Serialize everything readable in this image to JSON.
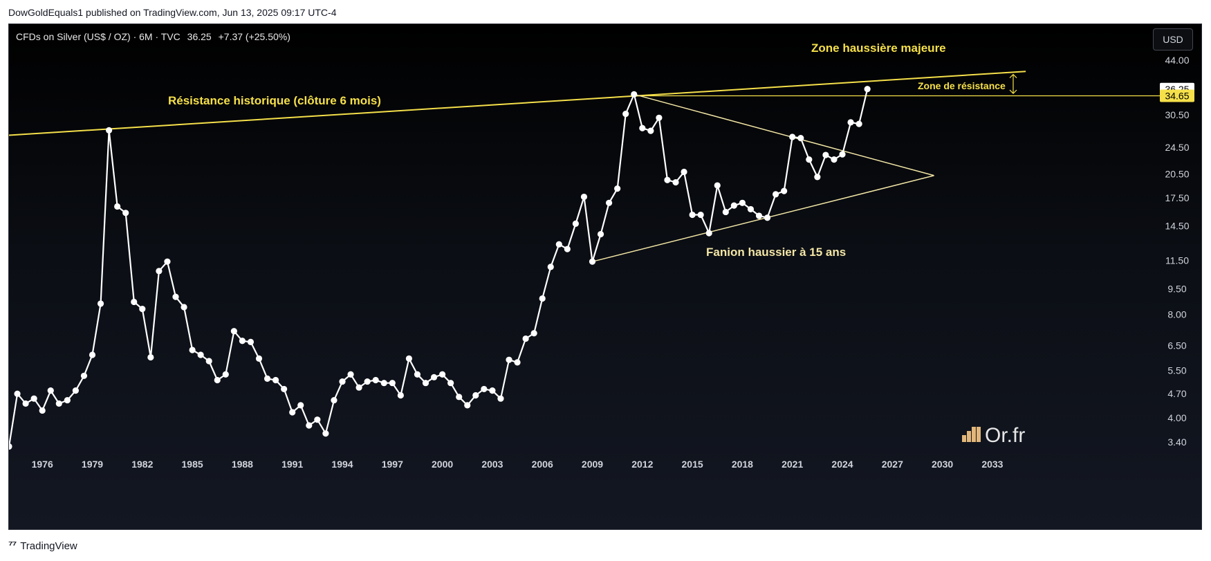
{
  "header": {
    "published": "DowGoldEquals1 published on TradingView.com, Jun 13, 2025 09:17 UTC-4"
  },
  "legend": {
    "symbol": "CFDs on Silver (US$ / OZ) · 6M · TVC",
    "price": "36.25",
    "change": "+7.37 (+25.50%)"
  },
  "currency_button": "USD",
  "footer": {
    "brand": "TradingView"
  },
  "watermark": {
    "text": "Or.fr"
  },
  "colors": {
    "series": "#ffffff",
    "resistance": "#f5e04a",
    "pennant": "#f3e6a6",
    "label_yellow": "#f5e04a",
    "price_badge_bg": "#f5e04a"
  },
  "chart_data": {
    "type": "line",
    "scale": "log",
    "grid": false,
    "x_ticks": [
      "1976",
      "1979",
      "1982",
      "1985",
      "1988",
      "1991",
      "1994",
      "1997",
      "2000",
      "2003",
      "2006",
      "2009",
      "2012",
      "2015",
      "2018",
      "2021",
      "2024",
      "2027",
      "2030",
      "2033"
    ],
    "y_ticks": [
      "44.00",
      "36.25",
      "34.65",
      "30.50",
      "24.50",
      "20.50",
      "17.50",
      "14.50",
      "11.50",
      "9.50",
      "8.00",
      "6.50",
      "5.50",
      "4.70",
      "4.00",
      "3.40"
    ],
    "price_badges": {
      "last": "36.25",
      "resistance": "34.65"
    },
    "series": [
      {
        "values": [
          [
            1974.0,
            3.3
          ],
          [
            1974.5,
            4.7
          ],
          [
            1975.0,
            4.4
          ],
          [
            1975.5,
            4.55
          ],
          [
            1976.0,
            4.2
          ],
          [
            1976.5,
            4.8
          ],
          [
            1977.0,
            4.4
          ],
          [
            1977.5,
            4.5
          ],
          [
            1978.0,
            4.8
          ],
          [
            1978.5,
            5.3
          ],
          [
            1979.0,
            6.1
          ],
          [
            1979.5,
            8.6
          ],
          [
            1980.0,
            27.5
          ],
          [
            1980.5,
            16.5
          ],
          [
            1981.0,
            15.8
          ],
          [
            1981.5,
            8.7
          ],
          [
            1982.0,
            8.3
          ],
          [
            1982.5,
            6.0
          ],
          [
            1983.0,
            10.7
          ],
          [
            1983.5,
            11.4
          ],
          [
            1984.0,
            9.0
          ],
          [
            1984.5,
            8.4
          ],
          [
            1985.0,
            6.3
          ],
          [
            1985.5,
            6.1
          ],
          [
            1986.0,
            5.85
          ],
          [
            1986.5,
            5.15
          ],
          [
            1987.0,
            5.35
          ],
          [
            1987.5,
            7.15
          ],
          [
            1988.0,
            6.7
          ],
          [
            1988.5,
            6.65
          ],
          [
            1989.0,
            5.95
          ],
          [
            1989.5,
            5.2
          ],
          [
            1990.0,
            5.15
          ],
          [
            1990.5,
            4.85
          ],
          [
            1991.0,
            4.15
          ],
          [
            1991.5,
            4.35
          ],
          [
            1992.0,
            3.8
          ],
          [
            1992.5,
            3.95
          ],
          [
            1993.0,
            3.6
          ],
          [
            1993.5,
            4.5
          ],
          [
            1994.0,
            5.1
          ],
          [
            1994.5,
            5.35
          ],
          [
            1995.0,
            4.9
          ],
          [
            1995.5,
            5.1
          ],
          [
            1996.0,
            5.15
          ],
          [
            1996.5,
            5.05
          ],
          [
            1997.0,
            5.05
          ],
          [
            1997.5,
            4.65
          ],
          [
            1998.0,
            5.95
          ],
          [
            1998.5,
            5.35
          ],
          [
            1999.0,
            5.05
          ],
          [
            1999.5,
            5.25
          ],
          [
            2000.0,
            5.35
          ],
          [
            2000.5,
            5.05
          ],
          [
            2001.0,
            4.6
          ],
          [
            2001.5,
            4.35
          ],
          [
            2002.0,
            4.65
          ],
          [
            2002.5,
            4.85
          ],
          [
            2003.0,
            4.8
          ],
          [
            2003.5,
            4.55
          ],
          [
            2004.0,
            5.9
          ],
          [
            2004.5,
            5.8
          ],
          [
            2005.0,
            6.8
          ],
          [
            2005.5,
            7.05
          ],
          [
            2006.0,
            8.9
          ],
          [
            2006.5,
            11.0
          ],
          [
            2007.0,
            12.8
          ],
          [
            2007.5,
            12.4
          ],
          [
            2008.0,
            14.7
          ],
          [
            2008.5,
            17.6
          ],
          [
            2009.0,
            11.4
          ],
          [
            2009.5,
            13.7
          ],
          [
            2010.0,
            16.9
          ],
          [
            2010.5,
            18.6
          ],
          [
            2011.0,
            30.7
          ],
          [
            2011.5,
            35.0
          ],
          [
            2012.0,
            27.9
          ],
          [
            2012.5,
            27.4
          ],
          [
            2013.0,
            29.9
          ],
          [
            2013.5,
            19.7
          ],
          [
            2014.0,
            19.4
          ],
          [
            2014.5,
            20.8
          ],
          [
            2015.0,
            15.6
          ],
          [
            2015.5,
            15.6
          ],
          [
            2016.0,
            13.8
          ],
          [
            2016.5,
            19.0
          ],
          [
            2017.0,
            15.9
          ],
          [
            2017.5,
            16.6
          ],
          [
            2018.0,
            16.9
          ],
          [
            2018.5,
            16.2
          ],
          [
            2019.0,
            15.5
          ],
          [
            2019.5,
            15.3
          ],
          [
            2020.0,
            17.9
          ],
          [
            2020.5,
            18.3
          ],
          [
            2021.0,
            26.3
          ],
          [
            2021.5,
            26.1
          ],
          [
            2022.0,
            22.6
          ],
          [
            2022.5,
            20.1
          ],
          [
            2023.0,
            23.3
          ],
          [
            2023.5,
            22.6
          ],
          [
            2024.0,
            23.4
          ],
          [
            2024.5,
            29.0
          ],
          [
            2025.0,
            28.7
          ],
          [
            2025.5,
            36.25
          ]
        ]
      }
    ],
    "annotations": {
      "resistance_label": "Résistance historique (clôture 6 mois)",
      "zone_majeure": "Zone haussière majeure",
      "zone_resistance": "Zone de résistance",
      "pennant_label": "Fanion haussier à 15 ans"
    }
  }
}
